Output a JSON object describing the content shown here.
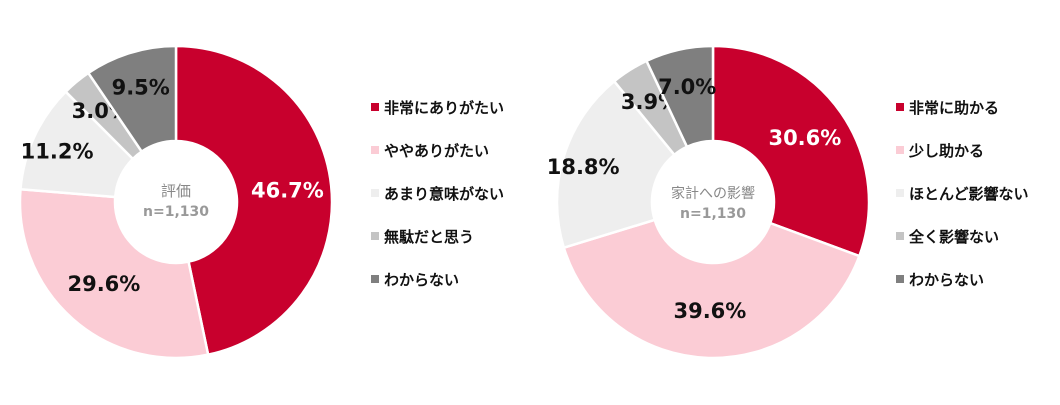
{
  "chart_data": [
    {
      "type": "pie",
      "variant": "donut",
      "center_title": "評価",
      "center_subtitle": "n=1,130",
      "categories": [
        "非常にありがたい",
        "ややありがたい",
        "あまり意味がない",
        "無駄だと思う",
        "わからない"
      ],
      "values": [
        46.7,
        29.6,
        11.2,
        3.0,
        9.5
      ],
      "data_labels": [
        "46.7%",
        "29.6%",
        "11.2%",
        "3.0%",
        "9.5%"
      ],
      "colors": [
        "#c8002d",
        "#fbccd5",
        "#eeeeee",
        "#c4c4c4",
        "#7f7f7f"
      ],
      "legend_position": "right"
    },
    {
      "type": "pie",
      "variant": "donut",
      "center_title": "家計への影響",
      "center_subtitle": "n=1,130",
      "categories": [
        "非常に助かる",
        "少し助かる",
        "ほとんど影響ない",
        "全く影響ない",
        "わからない"
      ],
      "values": [
        30.6,
        39.6,
        18.8,
        3.9,
        7.0
      ],
      "data_labels": [
        "30.6%",
        "39.6%",
        "18.8%",
        "3.9%",
        "7.0%"
      ],
      "colors": [
        "#c8002d",
        "#fbccd5",
        "#eeeeee",
        "#c4c4c4",
        "#7f7f7f"
      ],
      "legend_position": "right"
    }
  ]
}
